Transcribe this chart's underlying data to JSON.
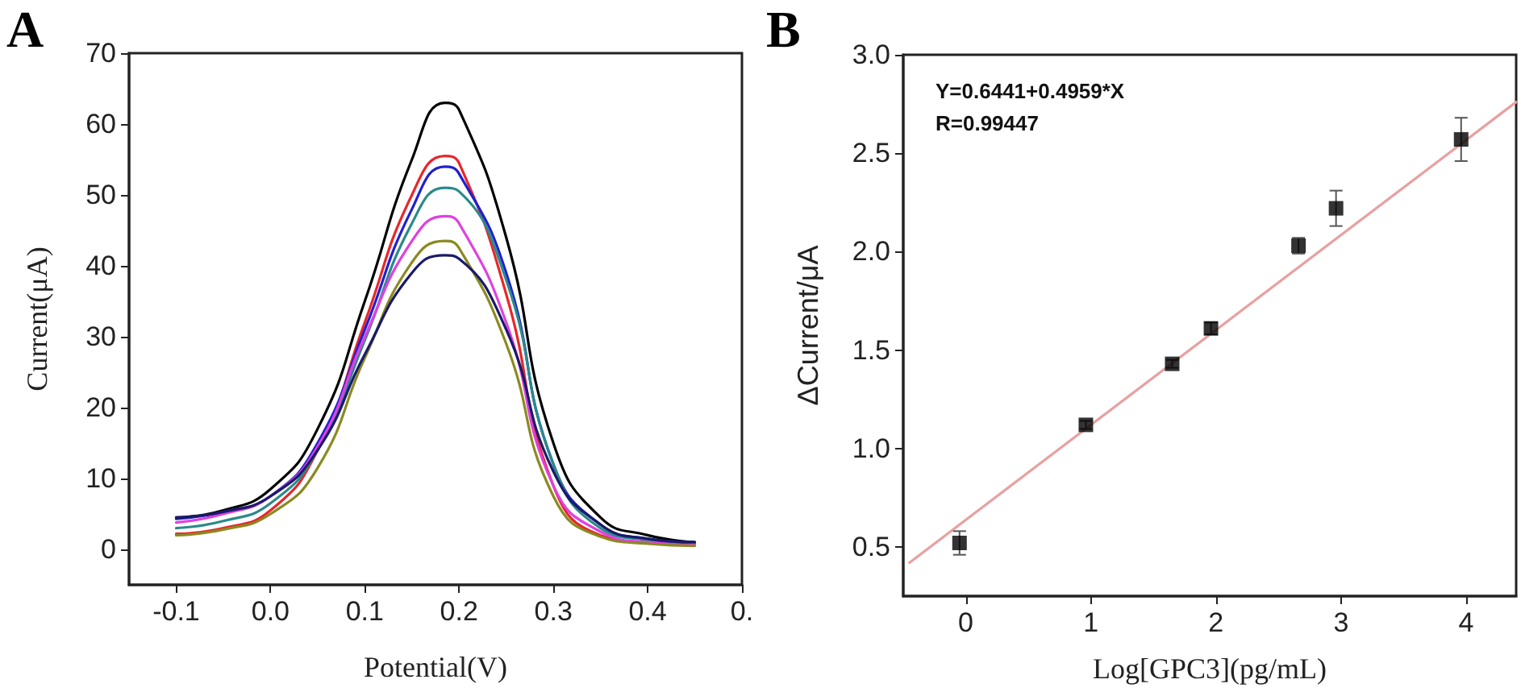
{
  "chart_data": [
    {
      "type": "line",
      "title": "A",
      "xlabel": "Potential(V)",
      "ylabel": "Current(μA)",
      "xlim": [
        -0.15,
        0.5
      ],
      "ylim": [
        -5,
        70
      ],
      "xticks": [
        -0.1,
        {
          "value": 0,
          "label": "0.0"
        },
        0.1,
        0.2,
        0.3,
        0.4,
        {
          "value": 0.5,
          "label": "0."
        }
      ],
      "yticks": [
        0,
        10,
        20,
        30,
        40,
        50,
        60,
        70
      ],
      "marker": "none",
      "grid": false,
      "x": [
        -0.1,
        -0.05,
        0,
        0.05,
        0.1,
        0.15,
        0.185,
        0.2,
        0.25,
        0.3,
        0.35,
        0.4,
        0.45
      ],
      "series": [
        {
          "color": "#000000",
          "values": [
            4.5,
            5.5,
            8.5,
            17,
            35,
            55,
            63,
            62,
            44,
            15,
            4.5,
            2,
            1
          ]
        },
        {
          "color": "#e8262b",
          "values": [
            2.2,
            3,
            5.5,
            14,
            32,
            50,
            55.5,
            54.5,
            36,
            9,
            2,
            1,
            0.8
          ]
        },
        {
          "color": "#2020d0",
          "values": [
            4.3,
            5.3,
            7.5,
            15,
            31,
            48,
            54,
            53,
            39,
            12,
            3.5,
            1.5,
            1
          ]
        },
        {
          "color": "#2a8a8a",
          "values": [
            3,
            4,
            6.5,
            14,
            29.5,
            46,
            51,
            50.5,
            38,
            12,
            3,
            1.3,
            0.8
          ]
        },
        {
          "color": "#e040e0",
          "values": [
            3.8,
            5,
            7.5,
            14.5,
            30,
            43.5,
            47,
            46,
            32,
            9,
            2.5,
            1,
            0.7
          ]
        },
        {
          "color": "#8a8a20",
          "values": [
            2,
            2.8,
            5,
            11.5,
            27,
            40.5,
            43.5,
            42.5,
            29,
            7.5,
            1.8,
            0.8,
            0.5
          ]
        },
        {
          "color": "#1a1a6a",
          "values": [
            4.5,
            5.3,
            7.5,
            14,
            27.5,
            39,
            41.5,
            41,
            31,
            11,
            3.5,
            1.5,
            1
          ]
        }
      ]
    },
    {
      "type": "scatter",
      "title": "B",
      "xlabel": "Log[GPC3](pg/mL)",
      "ylabel": "ΔCurrent/μA",
      "xlim": [
        -0.5,
        4.4
      ],
      "ylim": [
        0.25,
        3.0
      ],
      "xticks": [
        0,
        1,
        2,
        3,
        4
      ],
      "yticks": [
        0.5,
        {
          "value": 1,
          "label": "1.0"
        },
        1.5,
        {
          "value": 2,
          "label": "2.0"
        },
        2.5,
        {
          "value": 3,
          "label": "3.0"
        }
      ],
      "grid": false,
      "annotations": [
        "Y=0.6441+0.4959*X",
        "R=0.99447"
      ],
      "series": [
        {
          "marker": "square",
          "color": "#000000",
          "x": [
            -0.05,
            0.96,
            1.65,
            1.96,
            2.66,
            2.96,
            3.96
          ],
          "values": [
            0.52,
            1.12,
            1.43,
            1.61,
            2.03,
            2.22,
            2.57
          ],
          "errors": [
            0.06,
            0.02,
            0.02,
            0.03,
            0.04,
            0.09,
            0.11
          ]
        },
        {
          "type": "line",
          "marker": "none",
          "color": "#e8a0a0",
          "x": [
            -0.45,
            4.4
          ],
          "values": [
            0.42,
            2.76
          ]
        }
      ]
    }
  ]
}
